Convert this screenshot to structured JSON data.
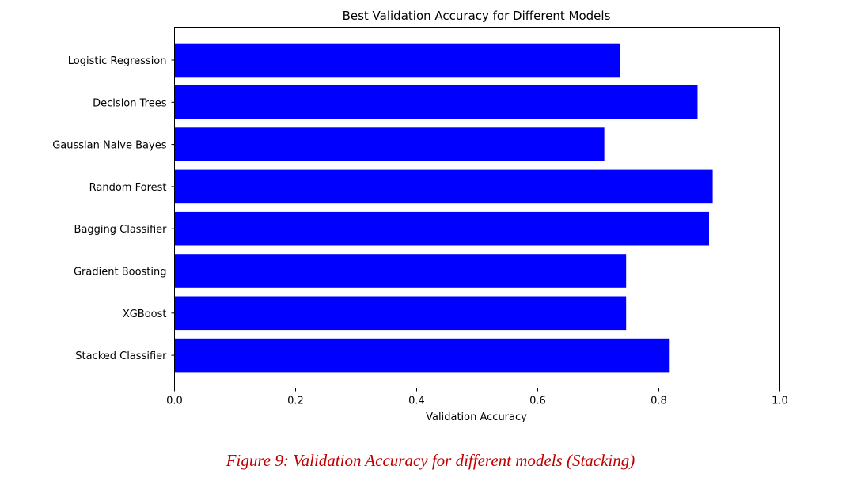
{
  "chart_data": {
    "type": "bar",
    "orientation": "horizontal",
    "title": "Best Validation Accuracy for Different Models",
    "xlabel": "Validation Accuracy",
    "ylabel": "",
    "xlim": [
      0.0,
      1.0
    ],
    "xticks": [
      "0.0",
      "0.2",
      "0.4",
      "0.6",
      "0.8",
      "1.0"
    ],
    "categories": [
      "Logistic Regression",
      "Decision Trees",
      "Gaussian Naive Bayes",
      "Random Forest",
      "Bagging Classifier",
      "Gradient Boosting",
      "XGBoost",
      "Stacked Classifier"
    ],
    "values": [
      0.736,
      0.864,
      0.71,
      0.889,
      0.883,
      0.746,
      0.746,
      0.818
    ],
    "bar_color": "#0000ff",
    "grid": false,
    "legend": "none"
  },
  "caption": "Figure 9: Validation Accuracy for different models (Stacking)",
  "caption_color": "#c00000"
}
